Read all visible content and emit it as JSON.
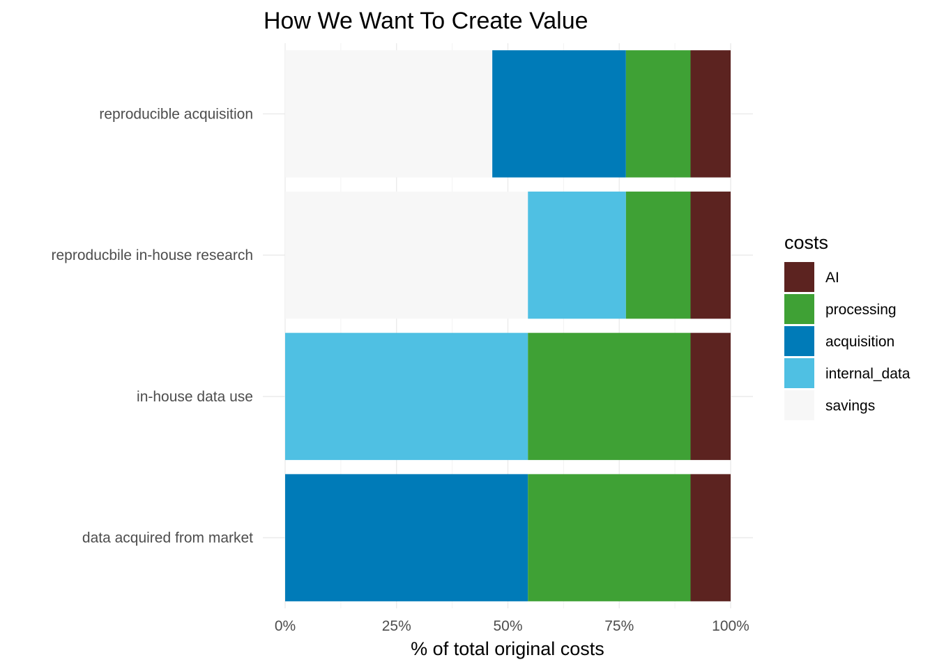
{
  "chart_data": {
    "type": "bar",
    "orientation": "horizontal",
    "stacked": true,
    "title": "How We Want To Create Value",
    "xlabel": "% of total original costs",
    "ylabel": "",
    "xlim": [
      0,
      1
    ],
    "x_ticks": [
      0,
      0.25,
      0.5,
      0.75,
      1.0
    ],
    "x_tick_labels": [
      "0%",
      "25%",
      "50%",
      "75%",
      "100%"
    ],
    "categories": [
      "reproducible acquisition",
      "reproducbile in-house research",
      "in-house data use",
      "data acquired from market"
    ],
    "series": [
      {
        "name": "savings",
        "color": "#f7f7f7",
        "values": [
          0.465,
          0.545,
          0.0,
          0.0
        ]
      },
      {
        "name": "internal_data",
        "color": "#4fc0e3",
        "values": [
          0.0,
          0.22,
          0.545,
          0.0
        ]
      },
      {
        "name": "acquisition",
        "color": "#007bb8",
        "values": [
          0.3,
          0.0,
          0.0,
          0.545
        ]
      },
      {
        "name": "processing",
        "color": "#3fa135",
        "values": [
          0.145,
          0.145,
          0.365,
          0.365
        ]
      },
      {
        "name": "AI",
        "color": "#5c2320",
        "values": [
          0.09,
          0.09,
          0.09,
          0.09
        ]
      }
    ],
    "legend": {
      "title": "costs",
      "position": "right",
      "order": [
        "AI",
        "processing",
        "acquisition",
        "internal_data",
        "savings"
      ]
    },
    "grid": true
  },
  "style": {
    "grid_major_color": "#ebebeb",
    "grid_minor_color": "#f2f2f2"
  }
}
